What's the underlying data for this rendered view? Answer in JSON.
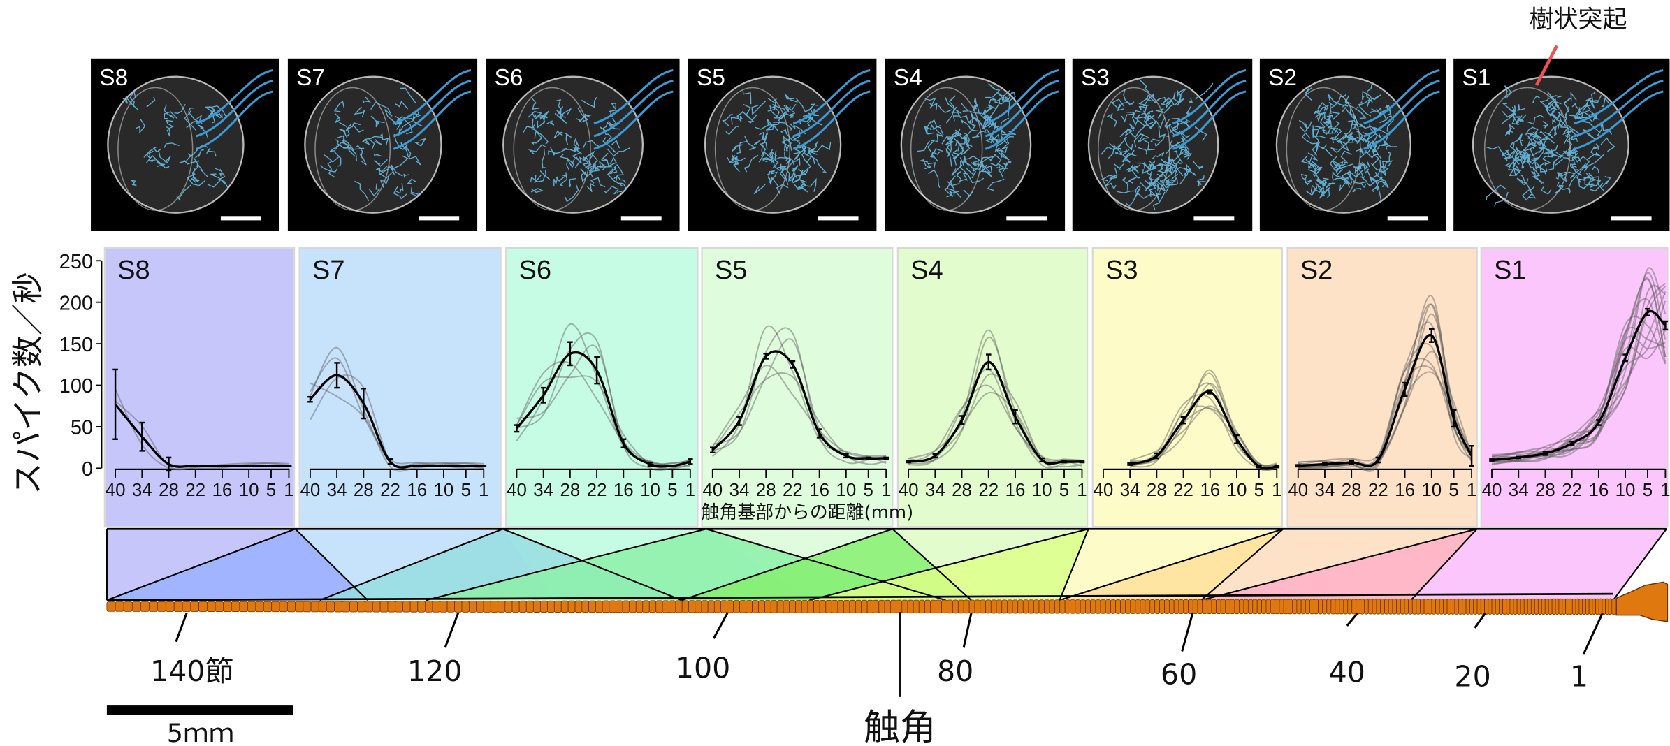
{
  "annotation": {
    "label": "樹状突起",
    "pointer_color": "#f05050"
  },
  "images": [
    {
      "label": "S8"
    },
    {
      "label": "S7"
    },
    {
      "label": "S6"
    },
    {
      "label": "S5"
    },
    {
      "label": "S4"
    },
    {
      "label": "S3"
    },
    {
      "label": "S2"
    },
    {
      "label": "S1"
    }
  ],
  "chart_data": {
    "type": "line",
    "ylabel": "スパイク数／秒",
    "xlabel": "触角基部からの距離(mm)",
    "ylim": [
      0,
      250
    ],
    "yticks": [
      0,
      50,
      100,
      150,
      200,
      250
    ],
    "ytick_labels": [
      "0",
      "50",
      "100",
      "150",
      "200",
      "250"
    ],
    "x": [
      40,
      34,
      28,
      22,
      16,
      10,
      5,
      1
    ],
    "xtick_labels": [
      "40",
      "34",
      "28",
      "22",
      "16",
      "10",
      "5",
      "1"
    ],
    "panels": [
      {
        "name": "S8",
        "color": "#c6c6fb",
        "mean": [
          77,
          38,
          5,
          3,
          3,
          3,
          3,
          3
        ],
        "sem": [
          42,
          17,
          8,
          0,
          0,
          0,
          0,
          0
        ]
      },
      {
        "name": "S7",
        "color": "#c7e2fb",
        "mean": [
          83,
          112,
          78,
          8,
          3,
          3,
          3,
          3
        ],
        "sem": [
          3,
          15,
          18,
          3,
          0,
          0,
          0,
          0
        ]
      },
      {
        "name": "S6",
        "color": "#c7fce4",
        "mean": [
          48,
          88,
          138,
          118,
          30,
          5,
          3,
          8
        ],
        "sem": [
          4,
          9,
          14,
          16,
          5,
          2,
          0,
          3
        ]
      },
      {
        "name": "S5",
        "color": "#dffcdc",
        "mean": [
          22,
          57,
          135,
          125,
          42,
          15,
          12,
          12
        ],
        "sem": [
          3,
          5,
          3,
          4,
          5,
          2,
          1,
          1
        ]
      },
      {
        "name": "S4",
        "color": "#e2fccd",
        "mean": [
          8,
          15,
          58,
          128,
          62,
          10,
          8,
          8
        ],
        "sem": [
          1,
          2,
          5,
          9,
          8,
          2,
          1,
          1
        ]
      },
      {
        "name": "S3",
        "color": "#fdfcc8",
        "mean": [
          null,
          5,
          15,
          58,
          92,
          35,
          2,
          2
        ],
        "sem": [
          null,
          1,
          3,
          4,
          2,
          5,
          1,
          1
        ]
      },
      {
        "name": "S2",
        "color": "#fde2c7",
        "mean": [
          3,
          5,
          7,
          10,
          95,
          160,
          60,
          15
        ],
        "sem": [
          1,
          1,
          2,
          3,
          8,
          8,
          10,
          12
        ]
      },
      {
        "name": "S1",
        "color": "#fbc6fb",
        "mean": [
          10,
          13,
          18,
          30,
          55,
          133,
          188,
          172
        ],
        "sem": [
          1,
          1,
          2,
          2,
          3,
          4,
          4,
          5
        ]
      }
    ]
  },
  "antenna": {
    "label": "触角",
    "color": "#e07810",
    "segment_labels": [
      "140節",
      "120",
      "100",
      "80",
      "60",
      "40",
      "20",
      "1"
    ]
  },
  "scale_bar": {
    "label": "5ｍｍ"
  }
}
